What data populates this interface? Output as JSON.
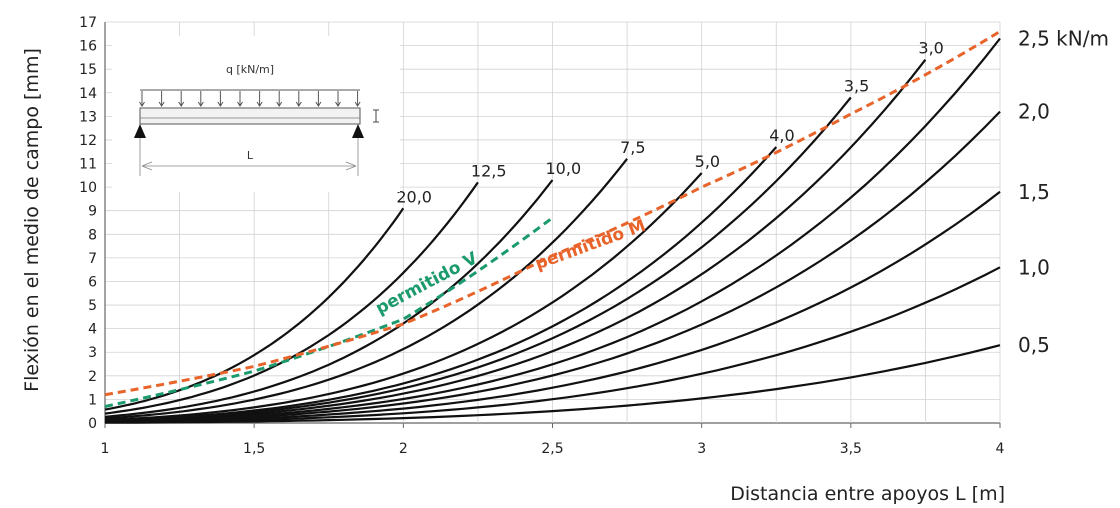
{
  "chart_data": {
    "type": "line",
    "xlabel": "Distancia entre apoyos L [m]",
    "ylabel": "Flexión en el medio de campo [mm]",
    "xlim": [
      1,
      4
    ],
    "ylim": [
      0,
      17
    ],
    "x_ticks": [
      "1",
      "1,5",
      "2",
      "2,5",
      "3",
      "3,5",
      "4"
    ],
    "y_ticks": [
      "0",
      "1",
      "2",
      "3",
      "4",
      "5",
      "6",
      "7",
      "8",
      "9",
      "10",
      "11",
      "12",
      "13",
      "14",
      "15",
      "16",
      "17"
    ],
    "grid": true,
    "curve_exponent": 4,
    "series": [
      {
        "name": "0,5",
        "side": "right",
        "x_end": 4.0,
        "y_end": 3.3
      },
      {
        "name": "1,0",
        "side": "right",
        "x_end": 4.0,
        "y_end": 6.6
      },
      {
        "name": "1,5",
        "side": "right",
        "x_end": 4.0,
        "y_end": 9.8
      },
      {
        "name": "2,0",
        "side": "right",
        "x_end": 4.0,
        "y_end": 13.2
      },
      {
        "name": "2,5 kN/m",
        "side": "right",
        "x_end": 4.0,
        "y_end": 16.3
      },
      {
        "name": "3,0",
        "side": "top",
        "x_end": 3.75,
        "y_end": 15.4
      },
      {
        "name": "3,5",
        "side": "top",
        "x_end": 3.5,
        "y_end": 13.8
      },
      {
        "name": "4,0",
        "side": "top",
        "x_end": 3.25,
        "y_end": 11.7
      },
      {
        "name": "5,0",
        "side": "top",
        "x_end": 3.0,
        "y_end": 10.6
      },
      {
        "name": "7,5",
        "side": "top",
        "x_end": 2.75,
        "y_end": 11.2
      },
      {
        "name": "10,0",
        "side": "top",
        "x_end": 2.5,
        "y_end": 10.3
      },
      {
        "name": "12,5",
        "side": "top",
        "x_end": 2.25,
        "y_end": 10.2
      },
      {
        "name": "20,0",
        "side": "top",
        "x_end": 2.0,
        "y_end": 9.1
      }
    ],
    "limit_lines": [
      {
        "name": "permitido V",
        "color": "#1b9a6c",
        "x": [
          1.0,
          1.5,
          2.0,
          2.5
        ],
        "y": [
          0.7,
          2.2,
          4.4,
          8.7
        ]
      },
      {
        "name": "permitido M",
        "color": "#e8642a",
        "x": [
          1.0,
          1.5,
          2.0,
          2.5,
          3.0,
          3.5,
          4.0
        ],
        "y": [
          1.2,
          2.4,
          4.2,
          7.1,
          10.0,
          13.1,
          16.6
        ]
      }
    ],
    "inset": {
      "load_label": "q [kN/m]",
      "span_label": "L"
    }
  }
}
